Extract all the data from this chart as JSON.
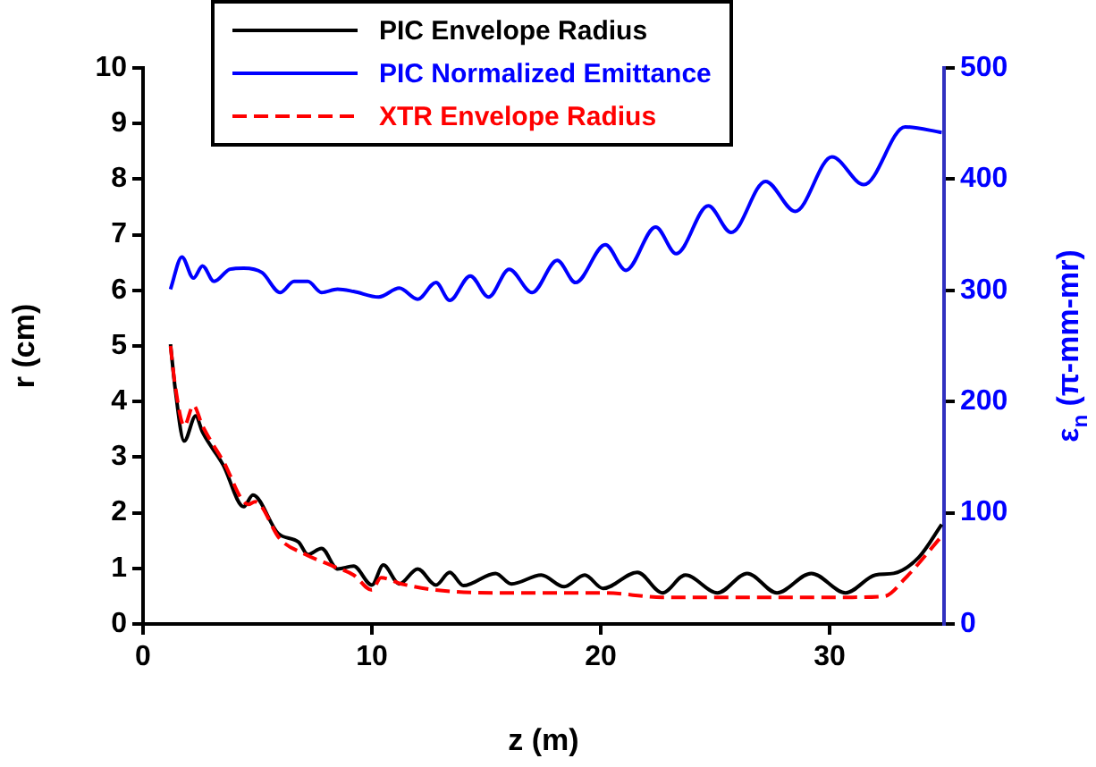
{
  "chart_data": {
    "type": "line",
    "xlabel": "z (m)",
    "ylabel": "r (cm)",
    "y2label": "ε$_{n}$ (π-mm-mr)",
    "xlim": [
      0,
      35
    ],
    "xticks": [
      0,
      10,
      20,
      30
    ],
    "ylim": [
      0,
      10
    ],
    "yticks": [
      0,
      1,
      2,
      3,
      4,
      5,
      6,
      7,
      8,
      9,
      10
    ],
    "y2lim": [
      0,
      500
    ],
    "y2ticks": [
      0,
      100,
      200,
      300,
      400,
      500
    ],
    "grid": false,
    "legend": "top",
    "marker": "none",
    "series": [
      {
        "name": "PIC Envelope Radius",
        "color": "#000000",
        "line_style": "solid",
        "x": [
          1.2,
          1.4,
          1.8,
          2.3,
          2.6,
          3.5,
          4.4,
          4.8,
          5.9,
          6.8,
          7.2,
          7.8,
          8.5,
          9.2,
          10.0,
          10.5,
          11.2,
          12.0,
          12.8,
          13.4,
          14.0,
          15.4,
          16.1,
          17.4,
          18.4,
          19.3,
          20.1,
          21.6,
          22.7,
          23.7,
          25.1,
          26.4,
          27.7,
          29.2,
          30.7,
          32.0,
          32.8,
          33.9,
          34.9
        ],
        "values": [
          5.03,
          4.25,
          3.29,
          3.74,
          3.45,
          2.86,
          2.11,
          2.32,
          1.63,
          1.47,
          1.25,
          1.36,
          0.99,
          1.04,
          0.7,
          1.06,
          0.72,
          0.99,
          0.7,
          0.93,
          0.69,
          0.91,
          0.72,
          0.88,
          0.67,
          0.88,
          0.64,
          0.93,
          0.56,
          0.88,
          0.56,
          0.91,
          0.56,
          0.91,
          0.56,
          0.88,
          0.91,
          1.2,
          1.79
        ]
      },
      {
        "name": "PIC Normalized Emittance",
        "color": "#0000ff",
        "line_style": "solid",
        "axis": "y2",
        "x": [
          1.2,
          1.7,
          2.2,
          2.6,
          3.1,
          3.8,
          4.4,
          5.2,
          6.0,
          6.6,
          7.2,
          7.8,
          8.5,
          9.2,
          10.3,
          11.2,
          12.0,
          12.8,
          13.4,
          14.3,
          15.1,
          16.0,
          17.0,
          18.1,
          18.9,
          20.2,
          21.1,
          22.4,
          23.3,
          24.7,
          25.7,
          27.2,
          28.5,
          30.1,
          31.5,
          33.3,
          34.9
        ],
        "values": [
          301,
          330,
          311,
          322,
          308,
          319,
          320,
          316,
          298,
          308,
          308,
          298,
          301,
          299,
          294,
          302,
          292,
          307,
          291,
          313,
          294,
          319,
          298,
          327,
          307,
          341,
          318,
          357,
          333,
          376,
          352,
          398,
          371,
          420,
          395,
          447,
          442
        ]
      },
      {
        "name": "XTR Envelope Radius",
        "color": "#ff0000",
        "line_style": "dashed",
        "x": [
          1.2,
          1.4,
          1.8,
          2.2,
          2.6,
          3.5,
          4.6,
          4.9,
          6.0,
          7.1,
          8.3,
          9.2,
          10.0,
          10.4,
          11.3,
          12.8,
          15.4,
          16.4,
          18.4,
          20.1,
          22.7,
          26.8,
          30.7,
          32.4,
          33.3,
          34.9
        ],
        "values": [
          5.0,
          4.3,
          3.56,
          3.93,
          3.56,
          2.93,
          2.15,
          2.2,
          1.52,
          1.25,
          1.04,
          0.88,
          0.61,
          0.83,
          0.72,
          0.61,
          0.56,
          0.56,
          0.56,
          0.56,
          0.48,
          0.48,
          0.48,
          0.5,
          0.82,
          1.58
        ]
      }
    ]
  }
}
